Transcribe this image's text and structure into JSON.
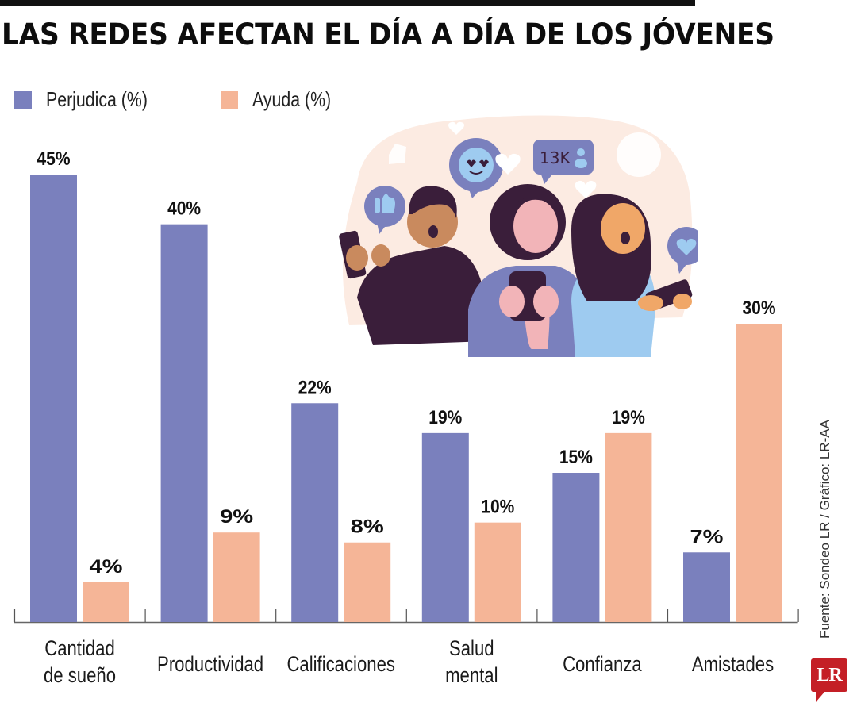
{
  "header": {
    "title": "LAS REDES AFECTAN EL DÍA A DÍA DE LOS JÓVENES"
  },
  "legend": [
    {
      "label": "Perjudica (%)",
      "color": "#7a80bd"
    },
    {
      "label": "Ayuda (%)",
      "color": "#f5b597"
    }
  ],
  "illustration": {
    "description": "three young people using phones with social media bubbles",
    "badge_text": "13K",
    "icons": [
      "thumbs-up-icon",
      "heart-eyes-emoji-icon",
      "followers-icon",
      "heart-icon"
    ]
  },
  "footer": {
    "source": "Fuente: Sondeo LR / Gráfico: LR-AA",
    "logo_text": "LR",
    "logo_color": "#c41f26"
  },
  "chart_data": {
    "type": "bar",
    "title": "LAS REDES AFECTAN EL DÍA A DÍA DE LOS JÓVENES",
    "xlabel": "",
    "ylabel": "",
    "ylim": [
      0,
      45
    ],
    "grid": false,
    "legend_position": "top-left",
    "categories": [
      [
        "Cantidad",
        "de sueño"
      ],
      [
        "Productividad"
      ],
      [
        "Calificaciones"
      ],
      [
        "Salud",
        "mental"
      ],
      [
        "Confianza"
      ],
      [
        "Amistades"
      ]
    ],
    "series": [
      {
        "name": "Perjudica (%)",
        "color": "#7a80bd",
        "values": [
          45,
          40,
          22,
          19,
          15,
          7
        ],
        "labels": [
          "45%",
          "40%",
          "22%",
          "19%",
          "15%",
          "7%"
        ]
      },
      {
        "name": "Ayuda (%)",
        "color": "#f5b597",
        "values": [
          4,
          9,
          8,
          10,
          19,
          30
        ],
        "labels": [
          "4%",
          "9%",
          "8%",
          "10%",
          "19%",
          "30%"
        ]
      }
    ]
  }
}
